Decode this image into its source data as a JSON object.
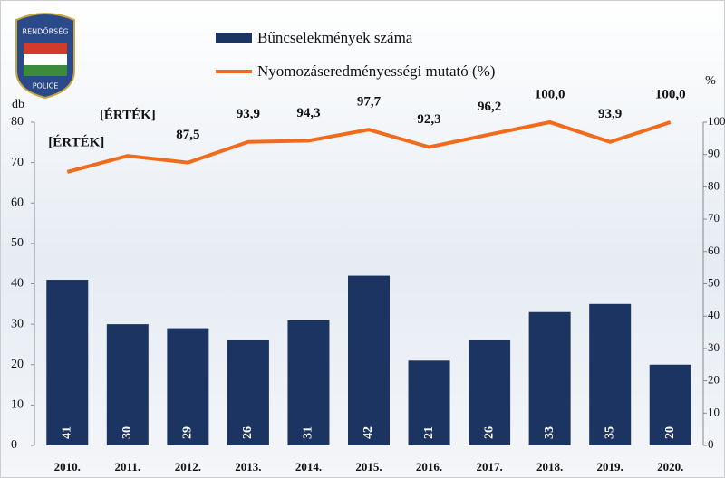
{
  "logo": [
    "RENDŐRSÉG",
    "POLICE"
  ],
  "chart_data": {
    "type": "bar_line",
    "categories": [
      "2010.",
      "2011.",
      "2012.",
      "2013.",
      "2014.",
      "2015.",
      "2016.",
      "2017.",
      "2018.",
      "2019.",
      "2020."
    ],
    "ylabel": "db",
    "y2label": "%",
    "ylim": [
      0,
      80
    ],
    "yticks": [
      0,
      10,
      20,
      30,
      40,
      50,
      60,
      70,
      80
    ],
    "y2lim": [
      0,
      100
    ],
    "y2ticks": [
      0,
      10,
      20,
      30,
      40,
      50,
      60,
      70,
      80,
      90,
      100
    ],
    "series": [
      {
        "name": "Bűncselekmények száma",
        "type": "bar",
        "color": "#1b3461",
        "values": [
          41,
          30,
          29,
          26,
          31,
          42,
          21,
          26,
          33,
          35,
          20
        ]
      },
      {
        "name": "Nyomozáseredményességi mutató (%)",
        "type": "line",
        "axis": "y2",
        "color": "#f26b1d",
        "values": [
          84.6,
          89.6,
          87.5,
          93.9,
          94.3,
          97.7,
          92.3,
          96.2,
          100.0,
          93.9,
          100.0
        ],
        "value_labels": [
          "[ÉRTÉK]",
          "[ÉRTÉK]",
          "87,5",
          "93,9",
          "94,3",
          "97,7",
          "92,3",
          "96,2",
          "100,0",
          "93,9",
          "100,0"
        ]
      }
    ]
  }
}
